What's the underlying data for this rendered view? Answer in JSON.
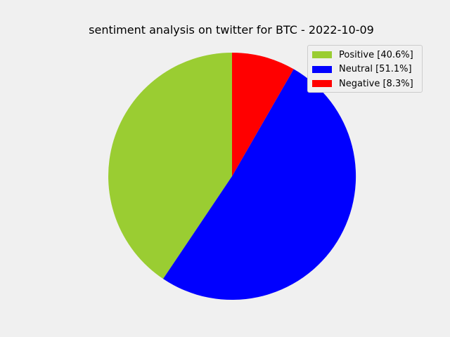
{
  "chart_data": {
    "type": "pie",
    "title": "sentiment analysis on twitter for BTC - 2022-10-09",
    "slices": [
      {
        "label": "Positive",
        "value": 40.6,
        "color": "#9acd32",
        "legend": "Positive [40.6%]"
      },
      {
        "label": "Neutral",
        "value": 51.1,
        "color": "#0000ff",
        "legend": "Neutral [51.1%]"
      },
      {
        "label": "Negative",
        "value": 8.3,
        "color": "#ff0000",
        "legend": "Negative [8.3%]"
      }
    ],
    "start_angle": 90,
    "direction": "counterclockwise",
    "legend_placement": "upper-right",
    "background": "#f0f0f0"
  }
}
